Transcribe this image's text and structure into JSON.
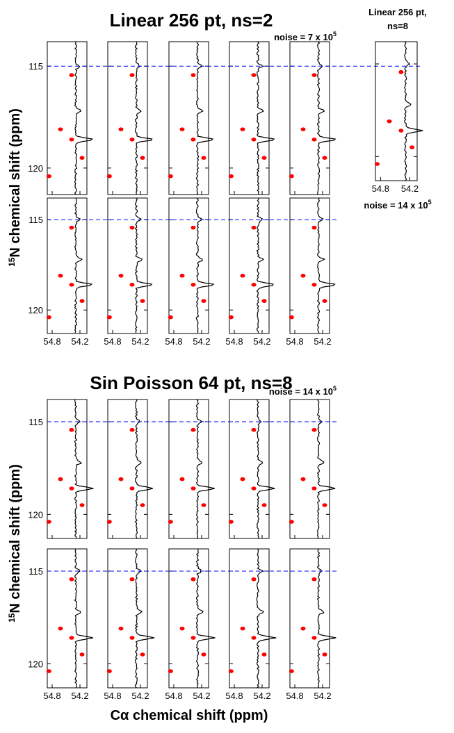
{
  "chart_data": {
    "type": "strip",
    "sections": [
      {
        "title": "Linear 256 pt, ns=2",
        "noise": {
          "text": "noise = 7 x 10",
          "exp": "5"
        }
      },
      {
        "title": "Sin Poisson 64 pt, ns=8",
        "noise": {
          "text": "noise = 14 x 10",
          "exp": "5"
        }
      }
    ],
    "side": {
      "title": [
        "Linear 256 pt,",
        "ns=8"
      ],
      "noise": {
        "text": "noise = 14 x 10",
        "exp": "5"
      }
    },
    "y_label": {
      "sup": "15",
      "text": "N chemical shift (ppm)"
    },
    "x_label": "Cα chemical shift (ppm)",
    "ylim": [
      113.8,
      121.3
    ],
    "yticks": [
      115,
      120
    ],
    "xlim": [
      54.905,
      54.05
    ],
    "xticks": [
      54.8,
      54.2
    ],
    "reference_line": 115,
    "peaks": [
      {
        "x": 54.38,
        "y": 115.44
      },
      {
        "x": 54.62,
        "y": 118.1
      },
      {
        "x": 54.38,
        "y": 118.6
      },
      {
        "x": 54.155,
        "y": 119.5
      },
      {
        "x": 54.87,
        "y": 120.4
      }
    ],
    "trace": {
      "x": 54.29,
      "peaks": [
        {
          "y": 115,
          "h": 6
        },
        {
          "y": 117.2,
          "h": 8
        },
        {
          "y": 118.6,
          "h": 25
        }
      ]
    }
  }
}
